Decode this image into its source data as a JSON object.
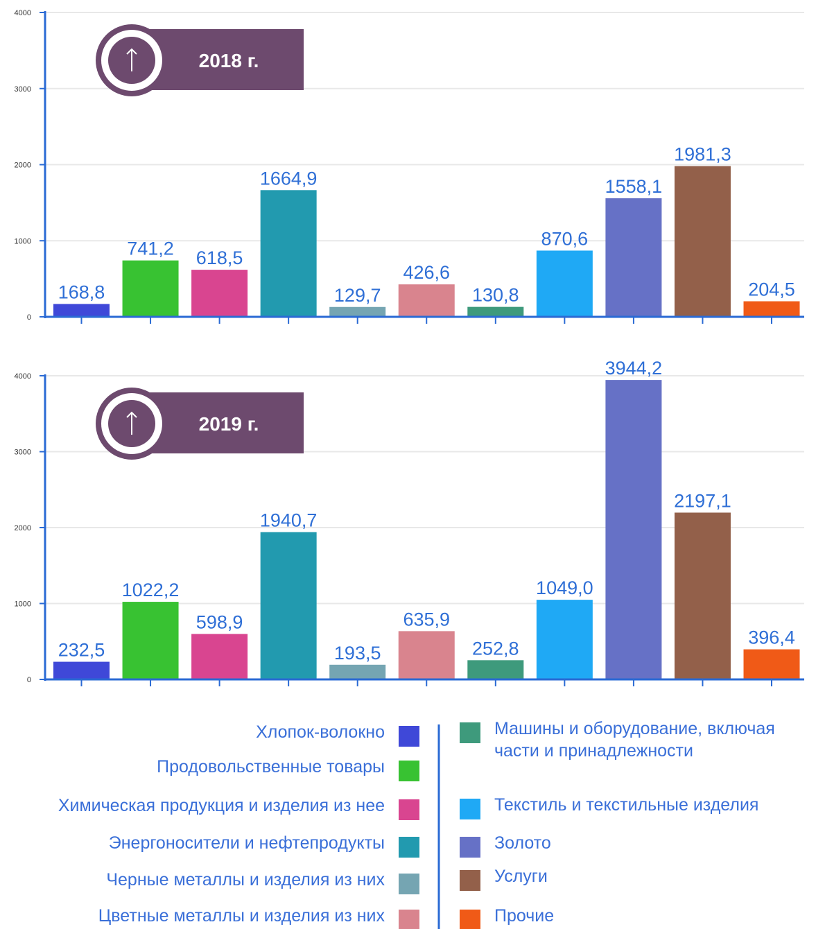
{
  "legend": [
    {
      "name": "Хлопок-волокно",
      "color": "#3f48d8"
    },
    {
      "name": "Продовольственные товары",
      "color": "#38c232"
    },
    {
      "name": "Химическая продукция и изделия из нее",
      "color": "#d94590"
    },
    {
      "name": "Энергоносители и нефтепродукты",
      "color": "#229aaf"
    },
    {
      "name": "Черные металлы и изделия из них",
      "color": "#75a5b2"
    },
    {
      "name": "Цветные металлы и изделия из них",
      "color": "#d9848e"
    },
    {
      "name": "Машины и оборудование, включая части и принадлежности",
      "color": "#3e9a7c"
    },
    {
      "name": "Текстиль и текстильные изделия",
      "color": "#1fa9f5"
    },
    {
      "name": "Золото",
      "color": "#6671c6"
    },
    {
      "name": "Услуги",
      "color": "#93604a"
    },
    {
      "name": "Прочие",
      "color": "#f05a17"
    }
  ],
  "chart_data": [
    {
      "type": "bar",
      "title": "2018 г.",
      "values": [
        168.8,
        741.2,
        618.5,
        1664.9,
        129.7,
        426.6,
        130.8,
        870.6,
        1558.1,
        1981.3,
        204.5
      ],
      "value_labels": [
        "168,8",
        "741,2",
        "618,5",
        "1664,9",
        "129,7",
        "426,6",
        "130,8",
        "870,6",
        "1558,1",
        "1981,3",
        "204,5"
      ],
      "ylim": [
        0,
        4000
      ],
      "yticks": [
        0,
        1000,
        2000,
        3000,
        4000
      ],
      "grid": true
    },
    {
      "type": "bar",
      "title": "2019 г.",
      "values": [
        232.5,
        1022.2,
        598.9,
        1940.7,
        193.5,
        635.9,
        252.8,
        1049.0,
        3944.2,
        2197.1,
        396.4
      ],
      "value_labels": [
        "232,5",
        "1022,2",
        "598,9",
        "1940,7",
        "193,5",
        "635,9",
        "252,8",
        "1049,0",
        "3944,2",
        "2197,1",
        "396,4"
      ],
      "ylim": [
        0,
        4000
      ],
      "yticks": [
        0,
        1000,
        2000,
        3000,
        4000
      ],
      "grid": true
    }
  ]
}
